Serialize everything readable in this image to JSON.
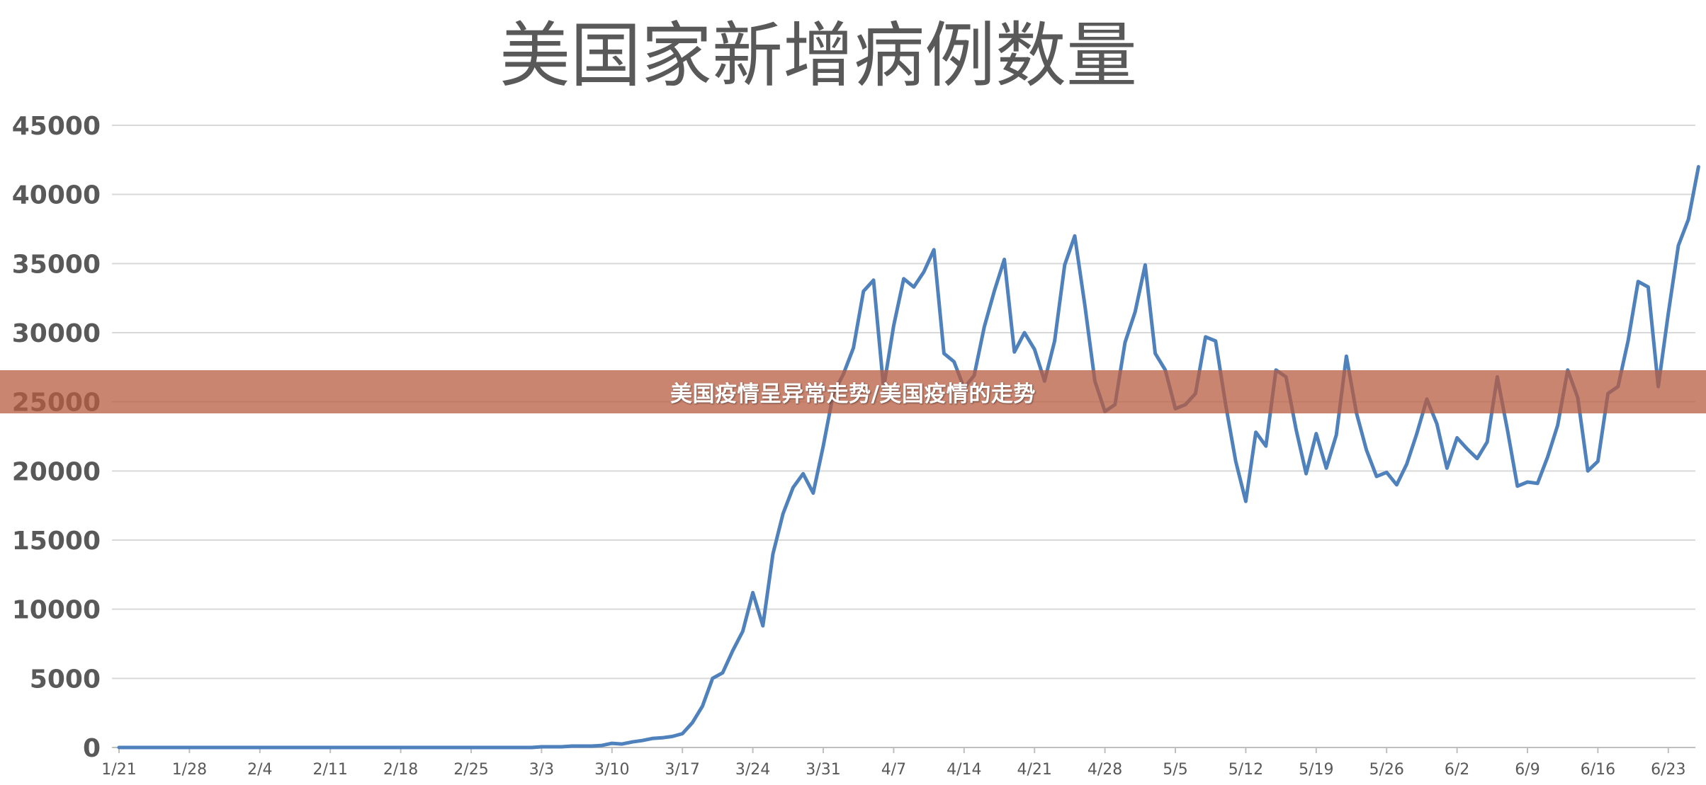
{
  "chart_data": {
    "type": "line",
    "title": "美国家新增病例数量",
    "xlabel": "",
    "ylabel": "",
    "ylim": [
      0,
      45000
    ],
    "yticks": [
      "0",
      "5000",
      "10000",
      "15000",
      "20000",
      "25000",
      "30000",
      "35000",
      "40000",
      "45000"
    ],
    "xtick_labels": [
      "1/21",
      "1/28",
      "2/4",
      "2/11",
      "2/18",
      "2/25",
      "3/3",
      "3/10",
      "3/17",
      "3/24",
      "3/31",
      "4/7",
      "4/14",
      "4/21",
      "4/28",
      "5/5",
      "5/12",
      "5/19",
      "5/26",
      "6/2",
      "6/9",
      "6/16",
      "6/23"
    ],
    "x_start": "1/21",
    "grid": true,
    "legend": "none",
    "series": [
      {
        "color": "#4f81bd",
        "values": [
          0,
          0,
          0,
          0,
          0,
          0,
          0,
          0,
          0,
          0,
          0,
          0,
          0,
          0,
          0,
          0,
          0,
          0,
          0,
          0,
          0,
          0,
          0,
          0,
          0,
          0,
          0,
          0,
          0,
          0,
          0,
          0,
          0,
          0,
          0,
          0,
          0,
          0,
          0,
          0,
          0,
          0,
          50,
          50,
          50,
          100,
          100,
          100,
          150,
          300,
          250,
          400,
          500,
          650,
          700,
          800,
          1000,
          1800,
          3000,
          5000,
          5400,
          7000,
          8400,
          11200,
          8800,
          14000,
          16900,
          18800,
          19800,
          18400,
          21800,
          25600,
          27000,
          28900,
          33000,
          33800,
          26000,
          30500,
          33900,
          33300,
          34400,
          36000,
          28500,
          27900,
          26000,
          26900,
          30400,
          33000,
          35300,
          28600,
          30000,
          28800,
          26500,
          29400,
          34900,
          37000,
          32000,
          26500,
          24300,
          24800,
          29300,
          31500,
          34900,
          28500,
          27300,
          24500,
          24800,
          25600,
          29700,
          29400,
          24800,
          20700,
          17800,
          22800,
          21800,
          27300,
          26800,
          23000,
          19800,
          22700,
          20200,
          22600,
          28300,
          24200,
          21500,
          19600,
          19900,
          19000,
          20500,
          22700,
          25200,
          23400,
          20200,
          22400,
          21600,
          20900,
          22100,
          26800,
          23000,
          18900,
          19200,
          19100,
          21000,
          23300,
          27300,
          25300,
          20000,
          20700,
          25600,
          26100,
          29400,
          33700,
          33300,
          26100,
          31400,
          36300,
          38200,
          42000
        ]
      }
    ]
  },
  "banner": {
    "text": "美国疫情呈异常走势/美国疫情的走势"
  }
}
